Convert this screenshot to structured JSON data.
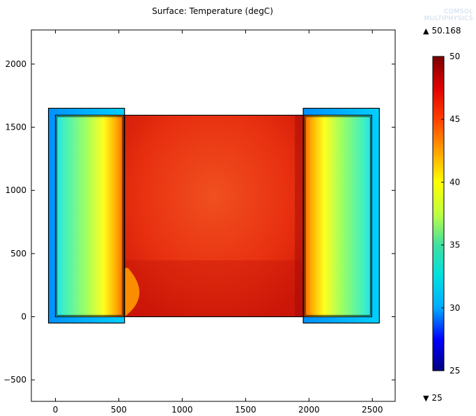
{
  "chart_data": {
    "type": "heatmap",
    "title": "Surface: Temperature (degC)",
    "brand": [
      "COMSOL",
      "MULTIPHYSICS"
    ],
    "x_ticks": [
      0,
      500,
      1000,
      1500,
      2000,
      2500
    ],
    "y_ticks": [
      2000,
      1500,
      1000,
      500,
      0,
      -500
    ],
    "xlim": [
      -190,
      2680
    ],
    "ylim": [
      -670,
      2270
    ],
    "colorbar": {
      "min": 25,
      "max": 50,
      "ticks": [
        50,
        45,
        40,
        35,
        30,
        25
      ],
      "colormap": "rainbow",
      "colors": [
        "#000080",
        "#0000ff",
        "#00aaff",
        "#00e0e0",
        "#40e0a0",
        "#c0ff40",
        "#ffff00",
        "#ffa000",
        "#ff4000",
        "#e00000",
        "#7a0000"
      ]
    },
    "max_value_label": "50.168",
    "min_value_label": "25",
    "regions": [
      {
        "name": "left-block-outer",
        "x": [
          -55,
          545
        ],
        "y": [
          -50,
          1650
        ],
        "temp_edge": 30,
        "temp_inner": 37,
        "hot_side": "right"
      },
      {
        "name": "left-block-inner",
        "x": [
          0,
          540
        ],
        "y": [
          0,
          1595
        ]
      },
      {
        "name": "center-region",
        "x": [
          545,
          1955
        ],
        "y": [
          0,
          1595
        ],
        "temp": 48
      },
      {
        "name": "right-block-outer",
        "x": [
          1955,
          2555
        ],
        "y": [
          -50,
          1650
        ],
        "temp_edge": 30,
        "temp_inner": 37,
        "hot_side": "left"
      },
      {
        "name": "right-block-inner",
        "x": [
          1960,
          2495
        ],
        "y": [
          0,
          1595
        ]
      }
    ]
  }
}
